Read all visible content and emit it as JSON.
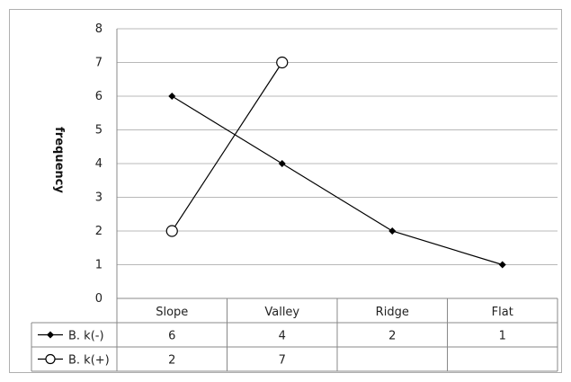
{
  "chart_data": {
    "type": "line",
    "title": "",
    "xlabel": "",
    "ylabel": "frequency",
    "ylim": [
      0,
      8
    ],
    "yticks": [
      "0",
      "1",
      "2",
      "3",
      "4",
      "5",
      "6",
      "7",
      "8"
    ],
    "categories": [
      "Slope",
      "Valley",
      "Ridge",
      "Flat"
    ],
    "grid": true,
    "legend": "data-table",
    "series": [
      {
        "name": "B. k(-)",
        "values": [
          6,
          4,
          2,
          1
        ],
        "marker": "filled-diamond",
        "color": "#000000"
      },
      {
        "name": "B. k(+)",
        "values": [
          2,
          7,
          null,
          null
        ],
        "marker": "open-circle",
        "color": "#000000"
      }
    ],
    "table_values": [
      [
        "6",
        "4",
        "2",
        "1"
      ],
      [
        "2",
        "7",
        "",
        ""
      ]
    ]
  }
}
